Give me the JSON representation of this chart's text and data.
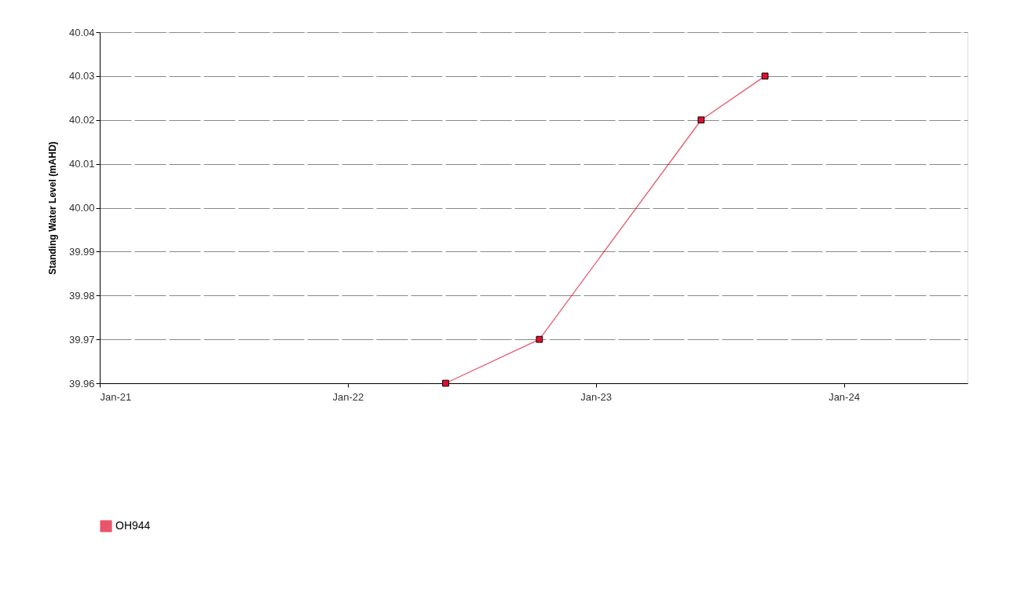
{
  "chart_data": {
    "type": "line",
    "ylabel": "Standing Water Level (mAHD)",
    "x": [
      "2022-05-25",
      "2022-10-10",
      "2023-06-05",
      "2023-09-07"
    ],
    "series": [
      {
        "name": "OH944",
        "color": "#e0102f",
        "values": [
          39.96,
          39.97,
          40.02,
          40.03
        ]
      }
    ],
    "xlim": [
      "2021-01-01",
      "2024-07-01"
    ],
    "xticks": [
      {
        "value": "2021-01-01",
        "label": "Jan-21"
      },
      {
        "value": "2022-01-01",
        "label": "Jan-22"
      },
      {
        "value": "2023-01-01",
        "label": "Jan-23"
      },
      {
        "value": "2024-01-01",
        "label": "Jan-24"
      }
    ],
    "ylim": [
      39.96,
      40.04
    ],
    "yticks": [
      {
        "value": 39.96,
        "label": "39.96"
      },
      {
        "value": 39.97,
        "label": "39.97"
      },
      {
        "value": 39.98,
        "label": "39.98"
      },
      {
        "value": 39.99,
        "label": "39.99"
      },
      {
        "value": 40.0,
        "label": "40.00"
      },
      {
        "value": 40.01,
        "label": "40.01"
      },
      {
        "value": 40.02,
        "label": "40.02"
      },
      {
        "value": 40.03,
        "label": "40.03"
      },
      {
        "value": 40.04,
        "label": "40.04"
      }
    ],
    "grid": "y",
    "legend": "bottom",
    "marker": "square",
    "line_style": "solid"
  }
}
